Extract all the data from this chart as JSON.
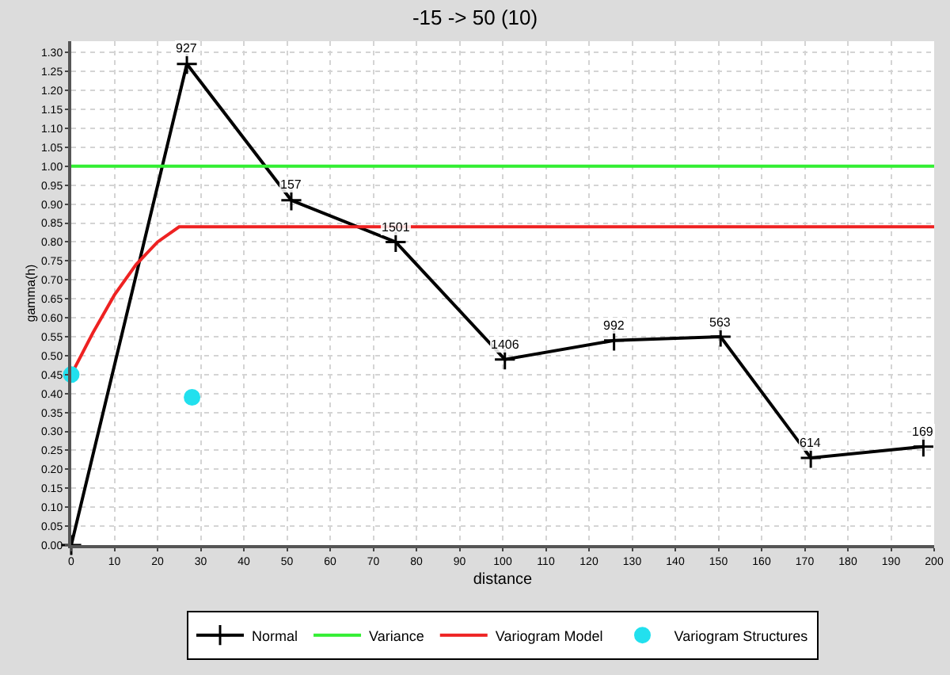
{
  "chart_data": {
    "type": "line",
    "title": "-15 -> 50 (10)",
    "xlabel": "distance",
    "ylabel": "gamma(h)",
    "series": [
      {
        "name": "Normal",
        "color": "#000000",
        "marker": "cross",
        "x": [
          0,
          26.8,
          51,
          75.2,
          100.5,
          125.8,
          150.5,
          171.4,
          197.5
        ],
        "values": [
          0,
          1.27,
          0.91,
          0.8,
          0.49,
          0.54,
          0.55,
          0.23,
          0.26
        ]
      },
      {
        "name": "Variance",
        "color": "#33ee33",
        "marker": "none",
        "x": [
          0,
          200
        ],
        "values": [
          1,
          1
        ]
      },
      {
        "name": "Variogram Model",
        "color": "#ee2222",
        "marker": "none",
        "x": [
          0,
          5,
          10,
          15,
          20,
          25,
          27,
          200
        ],
        "values": [
          0.45,
          0.56,
          0.66,
          0.74,
          0.8,
          0.84,
          0.84,
          0.84
        ]
      },
      {
        "name": "Variogram Structures",
        "type": "scatter",
        "color": "#22e0ee",
        "marker": "circle",
        "x": [
          0,
          28
        ],
        "values": [
          0.45,
          0.39
        ]
      }
    ],
    "xlim": [
      0,
      200
    ],
    "xticks": [
      0,
      10,
      20,
      30,
      40,
      50,
      60,
      70,
      80,
      90,
      100,
      110,
      120,
      130,
      140,
      150,
      160,
      170,
      180,
      190,
      200
    ],
    "ylim": [
      0,
      1.33
    ],
    "yticks": [
      {
        "value": 0,
        "label": "0.00"
      },
      {
        "value": 0.05,
        "label": "0.05"
      },
      {
        "value": 0.1,
        "label": "0.10"
      },
      {
        "value": 0.15,
        "label": "0.15"
      },
      {
        "value": 0.2,
        "label": "0.20"
      },
      {
        "value": 0.25,
        "label": "0.25"
      },
      {
        "value": 0.3,
        "label": "0.30"
      },
      {
        "value": 0.35,
        "label": "0.35"
      },
      {
        "value": 0.4,
        "label": "0.40"
      },
      {
        "value": 0.45,
        "label": "0.45"
      },
      {
        "value": 0.5,
        "label": "0.50"
      },
      {
        "value": 0.55,
        "label": "0.55"
      },
      {
        "value": 0.6,
        "label": "0.60"
      },
      {
        "value": 0.65,
        "label": "0.65"
      },
      {
        "value": 0.7,
        "label": "0.70"
      },
      {
        "value": 0.75,
        "label": "0.75"
      },
      {
        "value": 0.8,
        "label": "0.80"
      },
      {
        "value": 0.85,
        "label": "0.85"
      },
      {
        "value": 0.9,
        "label": "0.90"
      },
      {
        "value": 0.95,
        "label": "0.95"
      },
      {
        "value": 1,
        "label": "1.00"
      },
      {
        "value": 1.05,
        "label": "1.05"
      },
      {
        "value": 1.1,
        "label": "1.10"
      },
      {
        "value": 1.15,
        "label": "1.15"
      },
      {
        "value": 1.2,
        "label": "1.20"
      },
      {
        "value": 1.25,
        "label": "1.25"
      },
      {
        "value": 1.3,
        "label": "1.30"
      }
    ],
    "annotations": [
      {
        "text": "927",
        "x": 26.8,
        "y": 1.27
      },
      {
        "text": "157",
        "x": 51,
        "y": 0.91
      },
      {
        "text": "1501",
        "x": 75.2,
        "y": 0.8
      },
      {
        "text": "1406",
        "x": 100.5,
        "y": 0.49
      },
      {
        "text": "992",
        "x": 125.8,
        "y": 0.54
      },
      {
        "text": "563",
        "x": 150.5,
        "y": 0.55
      },
      {
        "text": "614",
        "x": 171.4,
        "y": 0.23
      },
      {
        "text": "169",
        "x": 197.5,
        "y": 0.26
      }
    ],
    "grid": true,
    "legend": "bottom"
  }
}
